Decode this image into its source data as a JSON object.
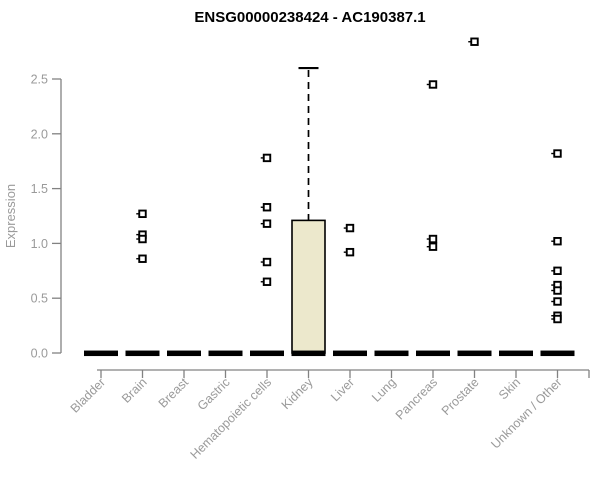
{
  "chart_data": {
    "type": "boxplot",
    "title": "ENSG00000238424 - AC190387.1",
    "ylabel": "Expression",
    "xlabel": "",
    "ylim": [
      0,
      2.85
    ],
    "grid": false,
    "legend": null,
    "ytick_labels": [
      "0.0",
      "0.5",
      "1.0",
      "1.5",
      "2.0",
      "2.5"
    ],
    "categories": [
      "Bladder",
      "Brain",
      "Breast",
      "Gastric",
      "Hematopoietic cells",
      "Kidney",
      "Liver",
      "Lung",
      "Pancreas",
      "Prostate",
      "Skin",
      "Unknown / Other"
    ],
    "boxes": [
      {
        "category": "Bladder",
        "median": 0.02,
        "q1": 0,
        "q3": 0.02,
        "whisker_low": 0,
        "whisker_high": 0.02,
        "points": []
      },
      {
        "category": "Brain",
        "median": 0.02,
        "q1": 0,
        "q3": 0.02,
        "whisker_low": 0,
        "whisker_high": 0.02,
        "points": [
          1.27,
          1.08,
          1.04,
          0.86
        ]
      },
      {
        "category": "Breast",
        "median": 0.02,
        "q1": 0,
        "q3": 0.02,
        "whisker_low": 0,
        "whisker_high": 0.02,
        "points": []
      },
      {
        "category": "Gastric",
        "median": 0.02,
        "q1": 0,
        "q3": 0.02,
        "whisker_low": 0,
        "whisker_high": 0.02,
        "points": []
      },
      {
        "category": "Hematopoietic cells",
        "median": 0.02,
        "q1": 0,
        "q3": 0.02,
        "whisker_low": 0,
        "whisker_high": 0.02,
        "points": [
          1.78,
          1.33,
          1.18,
          0.83,
          0.65
        ]
      },
      {
        "category": "Kidney",
        "median": 0.02,
        "q1": 0,
        "q3": 1.21,
        "whisker_low": 0,
        "whisker_high": 2.6,
        "points": []
      },
      {
        "category": "Liver",
        "median": 0.02,
        "q1": 0,
        "q3": 0.02,
        "whisker_low": 0,
        "whisker_high": 0.02,
        "points": [
          1.14,
          0.92
        ]
      },
      {
        "category": "Lung",
        "median": 0.02,
        "q1": 0,
        "q3": 0.02,
        "whisker_low": 0,
        "whisker_high": 0.02,
        "points": []
      },
      {
        "category": "Pancreas",
        "median": 0.02,
        "q1": 0,
        "q3": 0.02,
        "whisker_low": 0,
        "whisker_high": 0.02,
        "points": [
          2.45,
          1.04,
          0.97
        ]
      },
      {
        "category": "Prostate",
        "median": 0.02,
        "q1": 0,
        "q3": 0.02,
        "whisker_low": 0,
        "whisker_high": 0.02,
        "points": [
          2.84
        ]
      },
      {
        "category": "Skin",
        "median": 0.02,
        "q1": 0,
        "q3": 0.02,
        "whisker_low": 0,
        "whisker_high": 0.02,
        "points": []
      },
      {
        "category": "Unknown / Other",
        "median": 0.02,
        "q1": 0,
        "q3": 0.02,
        "whisker_low": 0,
        "whisker_high": 0.02,
        "points": [
          1.82,
          1.02,
          0.75,
          0.62,
          0.57,
          0.47,
          0.34,
          0.31
        ]
      }
    ],
    "colors": {
      "background": "#ffffff",
      "box_fill": "#ece8cc",
      "box_stroke": "#000000",
      "median": "#000000",
      "whisker": "#000000",
      "point_stroke": "#000000",
      "point_fill": "#ffffff",
      "axis": "#828282",
      "label_gray": "#9a9a9a",
      "title": "#000000"
    }
  }
}
